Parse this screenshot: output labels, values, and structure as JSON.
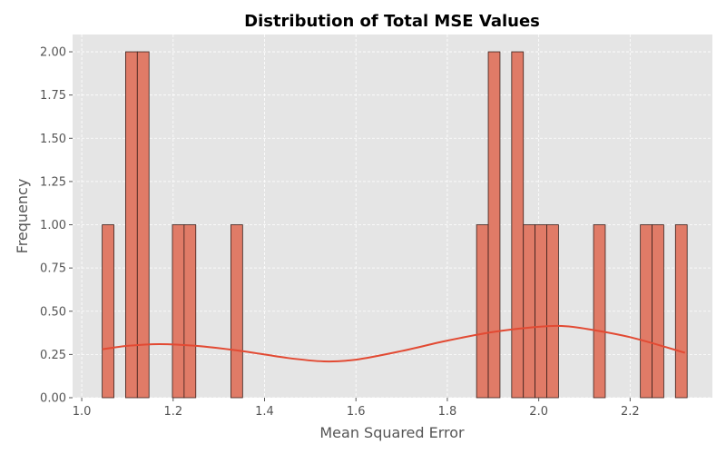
{
  "chart_data": {
    "type": "bar",
    "title": "Distribution of Total MSE Values",
    "xlabel": "Mean Squared Error",
    "ylabel": "Frequency",
    "xlim": [
      0.98,
      2.38
    ],
    "ylim": [
      0,
      2.1
    ],
    "x_ticks": [
      1.0,
      1.2,
      1.4,
      1.6,
      1.8,
      2.0,
      2.2
    ],
    "x_tick_labels": [
      "1.0",
      "1.2",
      "1.4",
      "1.6",
      "1.8",
      "2.0",
      "2.2"
    ],
    "y_ticks": [
      0,
      0.25,
      0.5,
      0.75,
      1.0,
      1.25,
      1.5,
      1.75,
      2.0
    ],
    "y_tick_labels": [
      "0.00",
      "0.25",
      "0.50",
      "0.75",
      "1.00",
      "1.25",
      "1.50",
      "1.75",
      "2.00"
    ],
    "grid": true,
    "bin_width": 0.0256,
    "bins": [
      {
        "start": 1.0448,
        "count": 1
      },
      {
        "start": 1.096,
        "count": 2
      },
      {
        "start": 1.1216,
        "count": 2
      },
      {
        "start": 1.1984,
        "count": 1
      },
      {
        "start": 1.224,
        "count": 1
      },
      {
        "start": 1.3264,
        "count": 1
      },
      {
        "start": 1.864,
        "count": 1
      },
      {
        "start": 1.8896,
        "count": 2
      },
      {
        "start": 1.9408,
        "count": 2
      },
      {
        "start": 1.9664,
        "count": 1
      },
      {
        "start": 1.992,
        "count": 1
      },
      {
        "start": 2.0176,
        "count": 1
      },
      {
        "start": 2.12,
        "count": 1
      },
      {
        "start": 2.2224,
        "count": 1
      },
      {
        "start": 2.248,
        "count": 1
      },
      {
        "start": 2.2992,
        "count": 1
      }
    ],
    "kde": {
      "x": [
        1.045,
        1.1,
        1.17,
        1.25,
        1.35,
        1.45,
        1.53,
        1.6,
        1.7,
        1.8,
        1.9,
        2.0,
        2.05,
        2.1,
        2.2,
        2.32
      ],
      "y": [
        0.28,
        0.3,
        0.31,
        0.3,
        0.27,
        0.23,
        0.21,
        0.22,
        0.27,
        0.33,
        0.38,
        0.41,
        0.415,
        0.4,
        0.35,
        0.26
      ]
    },
    "colors": {
      "bar_fill": "#e07b67",
      "bar_edge": "#3a1f1a",
      "kde_line": "#e24a33",
      "plot_bg": "#e5e5e5",
      "grid": "#ffffff",
      "page_bg": "#ffffff"
    }
  }
}
